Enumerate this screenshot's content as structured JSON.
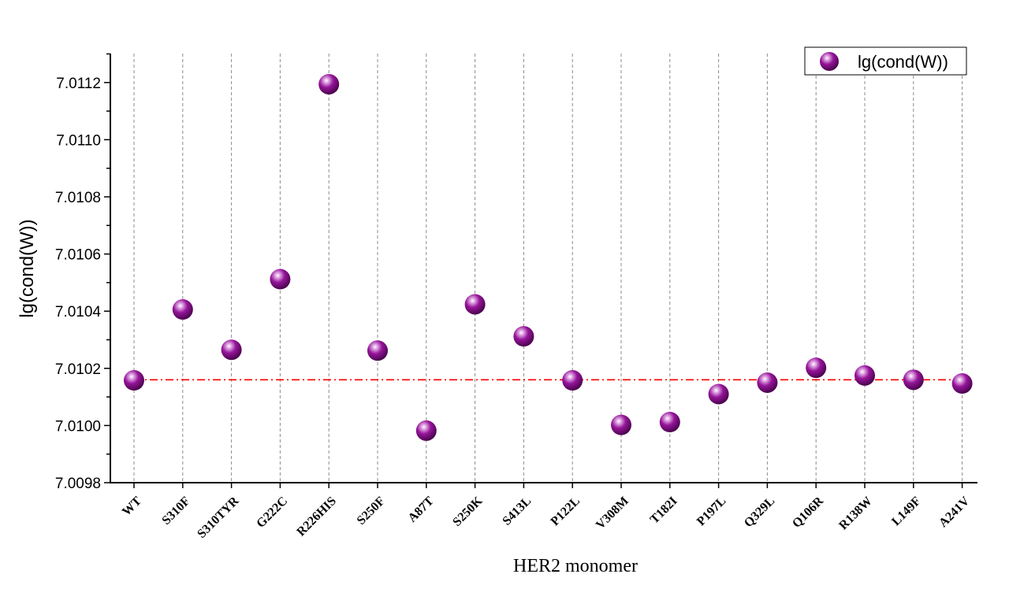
{
  "chart_data": {
    "type": "scatter",
    "title": "",
    "xlabel": "HER2 monomer",
    "ylabel": "lg(cond(W))",
    "categories": [
      "WT",
      "S310F",
      "S310TYR",
      "G222C",
      "R226HIS",
      "S250F",
      "A87T",
      "S250K",
      "S413L",
      "P122L",
      "V308M",
      "T182I",
      "P197L",
      "Q329L",
      "Q106R",
      "R138W",
      "L149F",
      "A241V"
    ],
    "series": [
      {
        "name": "lg(cond(W))",
        "values": [
          7.010158,
          7.010406,
          7.010265,
          7.010512,
          7.011194,
          7.010262,
          7.009982,
          7.010424,
          7.010312,
          7.010158,
          7.010002,
          7.010012,
          7.01011,
          7.01015,
          7.010202,
          7.010175,
          7.01016,
          7.010147
        ]
      }
    ],
    "reference_line": {
      "value": 7.01016,
      "style": "dash-dot",
      "color": "#ff0000"
    },
    "ylim": [
      7.0098,
      7.0113
    ],
    "yticks": [
      7.0098,
      7.01,
      7.0102,
      7.0104,
      7.0106,
      7.0108,
      7.011,
      7.0112
    ],
    "ytick_labels": [
      "7.0098",
      "7.0100",
      "7.0102",
      "7.0104",
      "7.0106",
      "7.0108",
      "7.0110",
      "7.0112"
    ],
    "grid": "vertical-dashed",
    "legend": {
      "position": "top-right",
      "entries": [
        "lg(cond(W))"
      ]
    },
    "marker_color": "#8a1a8c"
  }
}
